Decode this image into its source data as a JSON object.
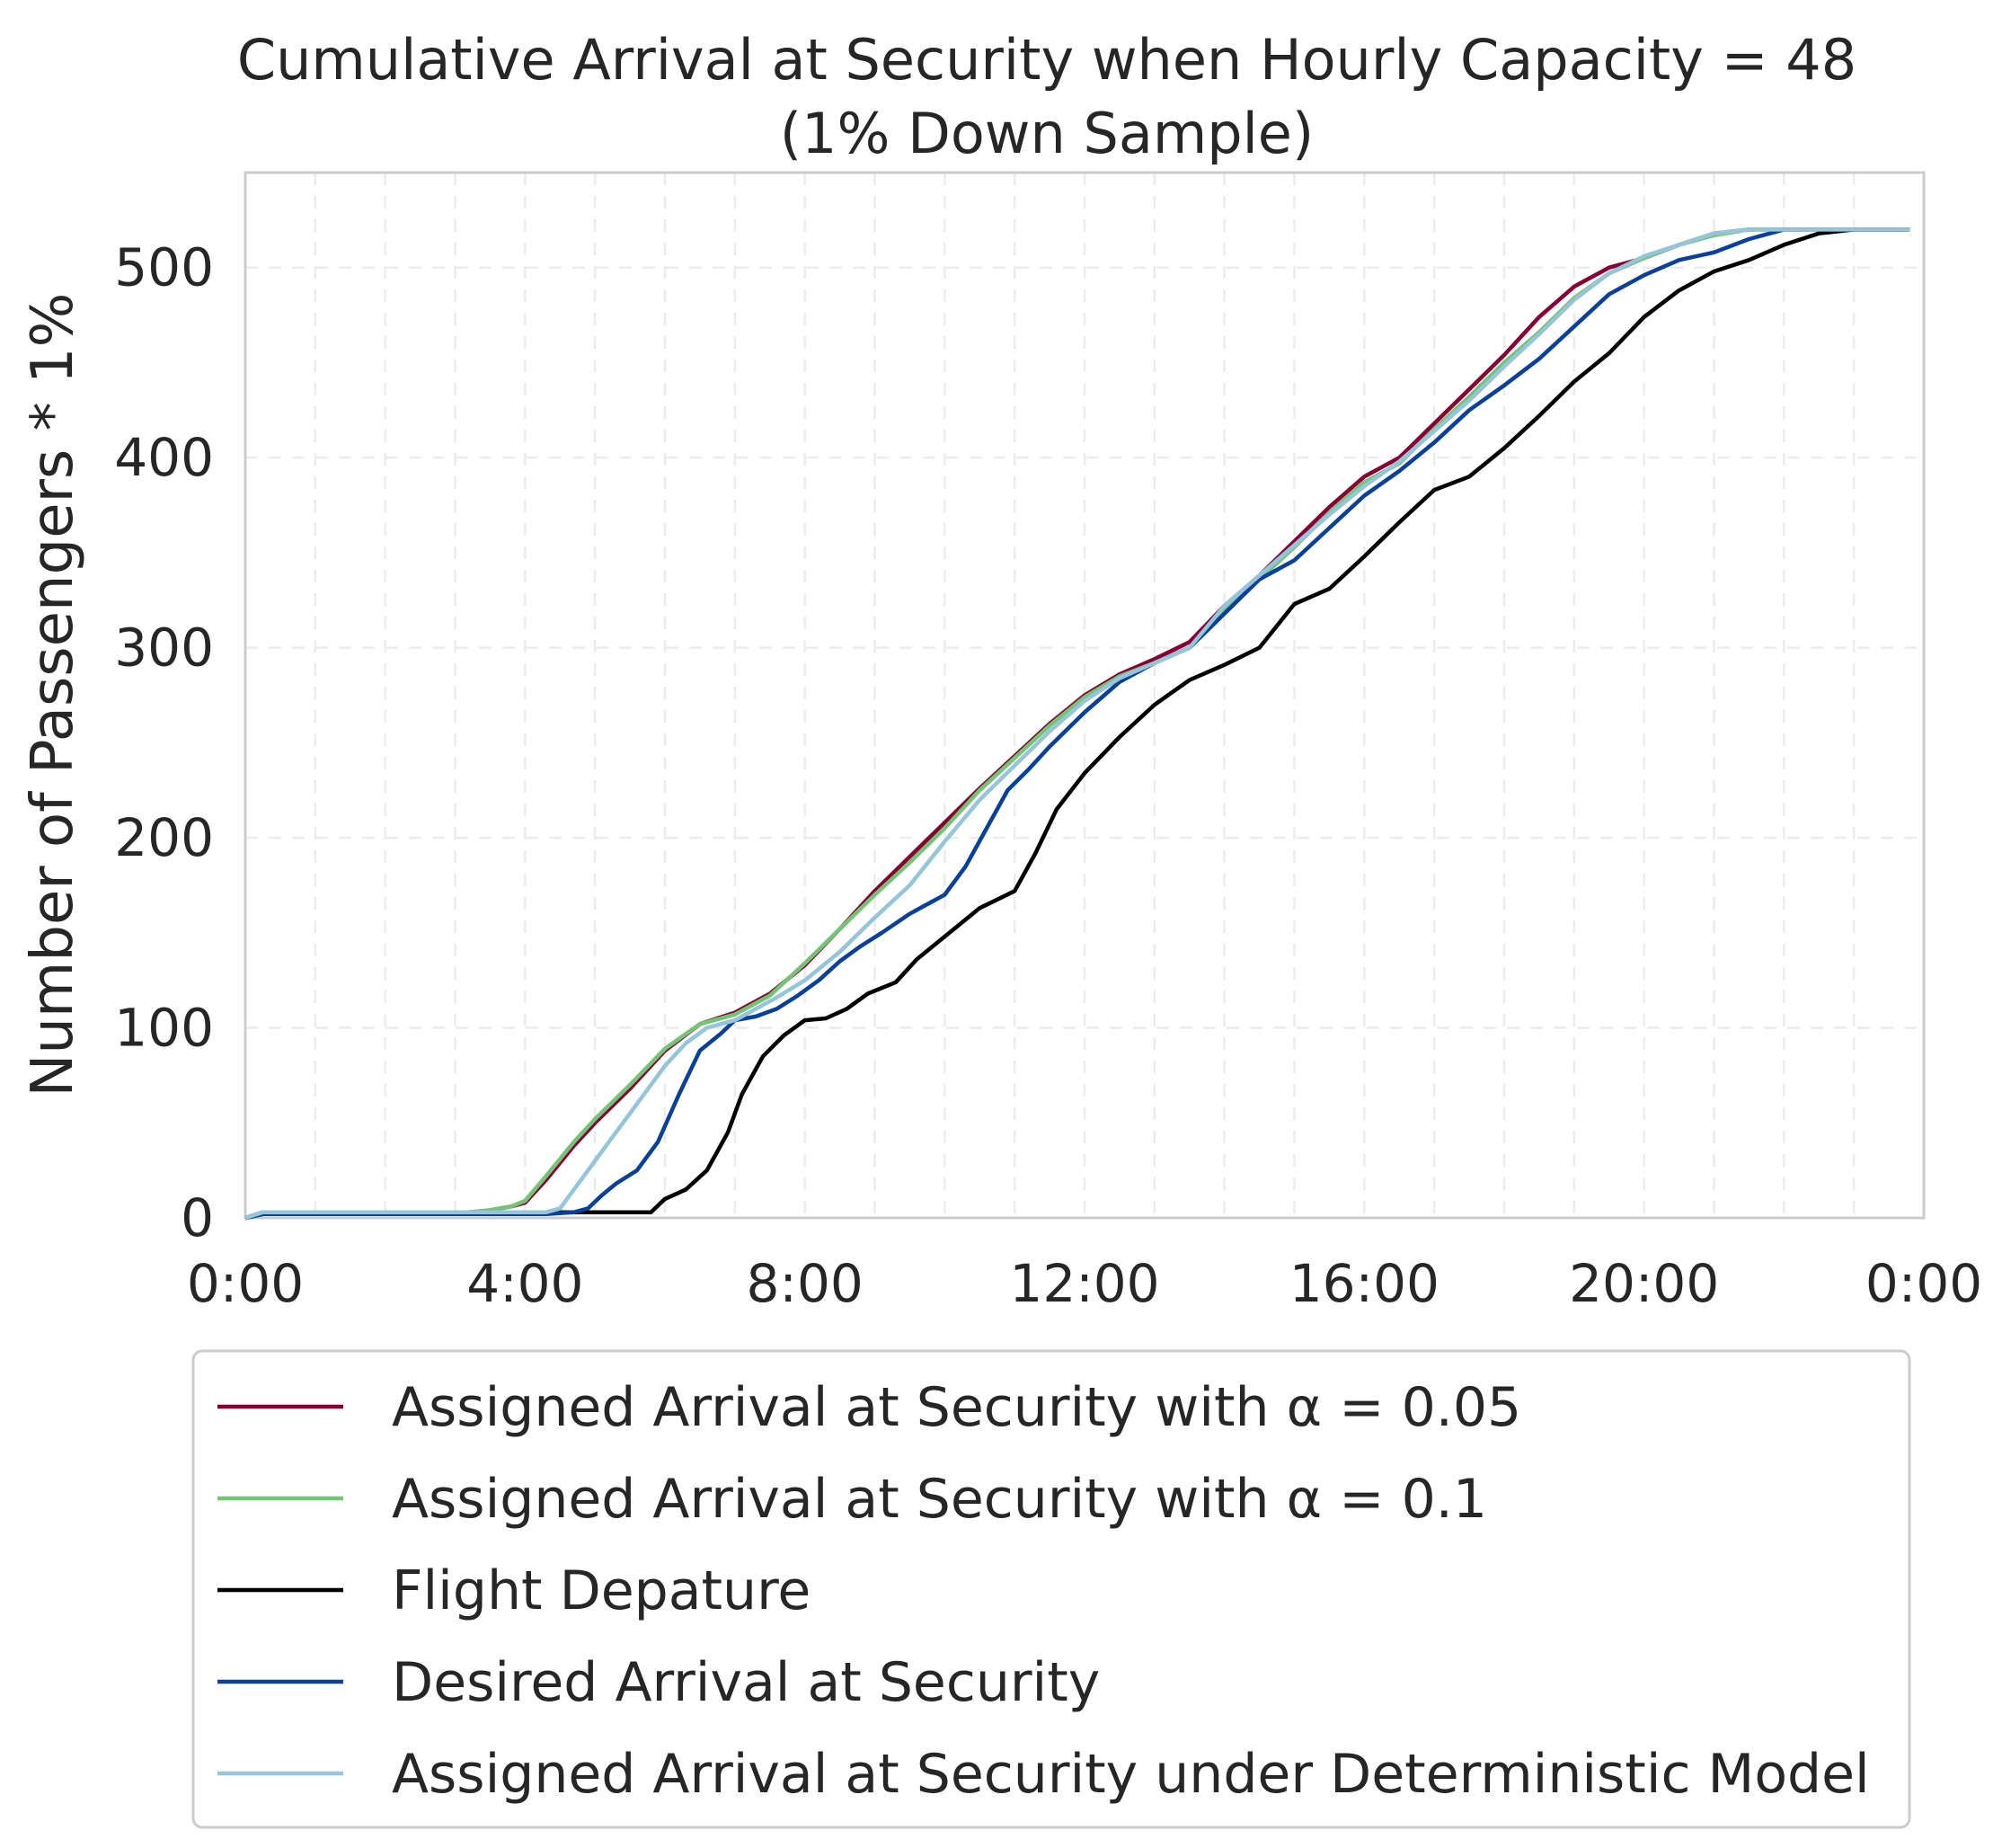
{
  "chart_data": {
    "type": "line",
    "title": "Cumulative Arrival at Security when Hourly Capacity = 48",
    "subtitle": "(1% Down Sample)",
    "xlabel": "",
    "ylabel": "Number of Passengers * 1%",
    "x_unit": "hours",
    "xlim": [
      0,
      24
    ],
    "ylim": [
      0,
      550
    ],
    "x_ticks": [
      0,
      4,
      8,
      12,
      16,
      20,
      24
    ],
    "x_tick_labels": [
      "0:00",
      "4:00",
      "8:00",
      "12:00",
      "16:00",
      "20:00",
      "0:00"
    ],
    "y_ticks": [
      0,
      100,
      200,
      300,
      400,
      500
    ],
    "y_tick_labels": [
      "0",
      "100",
      "200",
      "300",
      "400",
      "500"
    ],
    "grid": true,
    "legend_position": "below",
    "series": [
      {
        "name": "Assigned Arrival at Security with α = 0.05",
        "color": "#8b0033",
        "x": [
          0,
          0.25,
          0.5,
          3.2,
          3.5,
          3.8,
          4.0,
          4.3,
          4.7,
          5.0,
          5.5,
          6.0,
          6.5,
          7.0,
          7.5,
          8.0,
          8.5,
          9.0,
          9.5,
          10.0,
          10.5,
          11.0,
          11.5,
          12.0,
          12.5,
          13.0,
          13.5,
          14.0,
          14.5,
          15.0,
          15.5,
          16.0,
          16.5,
          17.0,
          17.5,
          18.0,
          18.5,
          19.0,
          19.5,
          20.0,
          20.5,
          21.0,
          21.5,
          21.75,
          22.0,
          23.0,
          23.8
        ],
        "values": [
          0,
          3,
          3,
          3,
          4,
          6,
          8,
          20,
          38,
          50,
          68,
          88,
          102,
          108,
          118,
          133,
          152,
          172,
          190,
          208,
          226,
          243,
          260,
          275,
          286,
          294,
          303,
          322,
          338,
          356,
          374,
          390,
          400,
          418,
          436,
          454,
          474,
          490,
          500,
          505,
          512,
          518,
          520,
          520,
          520,
          520,
          520
        ]
      },
      {
        "name": "Assigned Arrival at Security with α = 0.1",
        "color": "#74c476",
        "x": [
          0,
          0.25,
          0.5,
          3.2,
          3.5,
          3.8,
          4.0,
          4.3,
          4.7,
          5.0,
          5.5,
          6.0,
          6.5,
          7.0,
          7.5,
          8.0,
          8.5,
          9.0,
          9.5,
          10.0,
          10.5,
          11.0,
          11.5,
          12.0,
          12.5,
          13.0,
          13.5,
          14.0,
          14.5,
          15.0,
          15.5,
          16.0,
          16.5,
          17.0,
          17.5,
          18.0,
          18.5,
          19.0,
          19.5,
          20.0,
          20.5,
          21.0,
          21.5,
          21.75,
          22.0,
          23.0,
          23.8
        ],
        "values": [
          0,
          3,
          3,
          3,
          4,
          6,
          9,
          22,
          40,
          52,
          70,
          89,
          102,
          107,
          117,
          134,
          152,
          170,
          187,
          205,
          225,
          242,
          259,
          274,
          285,
          292,
          300,
          320,
          336,
          353,
          371,
          387,
          397,
          415,
          432,
          450,
          466,
          484,
          497,
          505,
          512,
          517,
          520,
          520,
          520,
          520,
          520
        ]
      },
      {
        "name": "Flight Depature",
        "color": "#000000",
        "x": [
          0,
          0.25,
          3.0,
          4.5,
          5.0,
          5.8,
          6.0,
          6.3,
          6.6,
          6.9,
          7.1,
          7.4,
          7.7,
          8.0,
          8.3,
          8.6,
          8.9,
          9.3,
          9.6,
          10.0,
          10.5,
          11.0,
          11.3,
          11.6,
          12.0,
          12.5,
          13.0,
          13.5,
          14.0,
          14.5,
          15.0,
          15.5,
          16.0,
          16.5,
          17.0,
          17.5,
          18.0,
          18.5,
          19.0,
          19.5,
          20.0,
          20.5,
          21.0,
          21.5,
          22.0,
          22.5,
          23.0,
          23.8
        ],
        "values": [
          0,
          2,
          2,
          3,
          3,
          3,
          10,
          15,
          25,
          45,
          65,
          85,
          96,
          104,
          105,
          110,
          118,
          124,
          136,
          148,
          163,
          172,
          192,
          215,
          234,
          253,
          270,
          283,
          291,
          300,
          323,
          331,
          348,
          366,
          383,
          390,
          405,
          422,
          440,
          455,
          474,
          488,
          498,
          504,
          512,
          518,
          520,
          520
        ]
      },
      {
        "name": "Desired Arrival at Security",
        "color": "#08409c",
        "x": [
          0,
          0.25,
          3.0,
          4.3,
          4.7,
          4.9,
          5.1,
          5.3,
          5.6,
          5.9,
          6.2,
          6.5,
          6.8,
          7.0,
          7.3,
          7.6,
          7.9,
          8.2,
          8.5,
          8.8,
          9.1,
          9.5,
          10.0,
          10.3,
          10.6,
          10.9,
          11.2,
          11.5,
          12.0,
          12.5,
          13.0,
          13.5,
          14.0,
          14.5,
          15.0,
          15.5,
          16.0,
          16.5,
          17.0,
          17.5,
          18.0,
          18.5,
          19.0,
          19.5,
          20.0,
          20.5,
          21.0,
          21.5,
          22.0,
          22.5,
          23.0,
          23.8
        ],
        "values": [
          0,
          2,
          2,
          2,
          3,
          5,
          12,
          18,
          25,
          40,
          65,
          88,
          97,
          104,
          106,
          110,
          117,
          125,
          135,
          143,
          150,
          160,
          170,
          185,
          205,
          225,
          236,
          248,
          266,
          282,
          292,
          300,
          318,
          336,
          346,
          363,
          380,
          393,
          408,
          425,
          438,
          452,
          469,
          486,
          496,
          504,
          508,
          515,
          520,
          520,
          520,
          520
        ]
      },
      {
        "name": "Assigned Arrival at Security under Deterministic Model",
        "color": "#95c5da",
        "x": [
          0,
          0.25,
          3.0,
          4.3,
          4.5,
          4.8,
          5.2,
          5.6,
          6.0,
          6.3,
          6.6,
          7.0,
          7.3,
          7.6,
          8.0,
          8.5,
          9.0,
          9.5,
          10.0,
          10.5,
          11.0,
          11.5,
          12.0,
          12.5,
          13.0,
          13.5,
          14.0,
          14.5,
          15.0,
          15.5,
          16.0,
          16.5,
          17.0,
          17.5,
          18.0,
          18.5,
          19.0,
          19.5,
          20.0,
          20.5,
          21.0,
          21.5,
          22.0,
          23.0,
          23.8
        ],
        "values": [
          0,
          3,
          3,
          3,
          5,
          20,
          40,
          60,
          80,
          92,
          100,
          104,
          110,
          116,
          125,
          140,
          158,
          175,
          198,
          220,
          238,
          256,
          272,
          284,
          292,
          300,
          322,
          338,
          354,
          370,
          385,
          398,
          414,
          430,
          448,
          465,
          483,
          497,
          506,
          512,
          518,
          520,
          520,
          520,
          520
        ]
      }
    ]
  }
}
